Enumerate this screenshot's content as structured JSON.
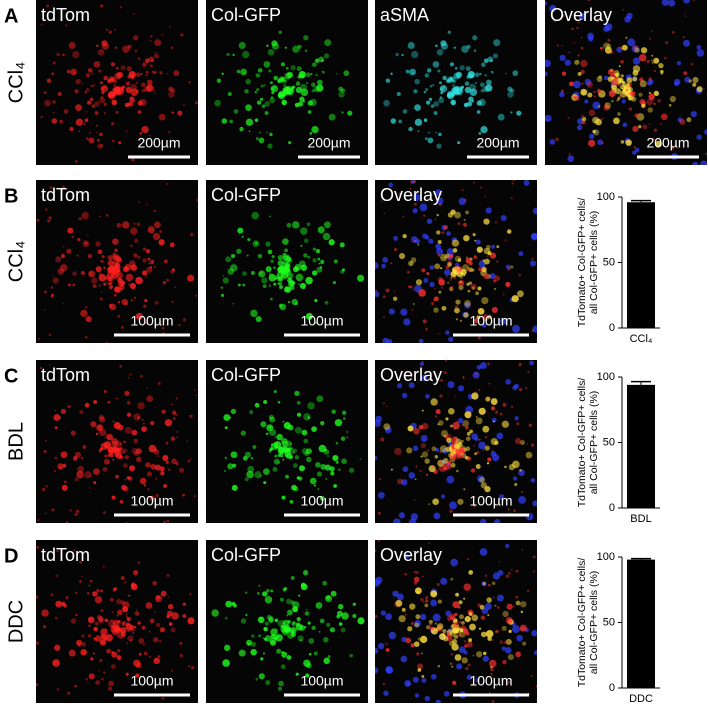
{
  "panels": [
    {
      "letter": "A",
      "condition": "CCl₄",
      "images": [
        {
          "label": "tdTom",
          "scale_bar": "200µm"
        },
        {
          "label": "Col-GFP",
          "scale_bar": "200µm"
        },
        {
          "label": "aSMA",
          "scale_bar": "200µm"
        },
        {
          "label": "Overlay",
          "scale_bar": "200µm"
        }
      ]
    },
    {
      "letter": "B",
      "condition": "CCl₄",
      "images": [
        {
          "label": "tdTom",
          "scale_bar": "100µm"
        },
        {
          "label": "Col-GFP",
          "scale_bar": "100µm"
        },
        {
          "label": "Overlay",
          "scale_bar": "100µm"
        }
      ]
    },
    {
      "letter": "C",
      "condition": "BDL",
      "images": [
        {
          "label": "tdTom",
          "scale_bar": "100µm"
        },
        {
          "label": "Col-GFP",
          "scale_bar": "100µm"
        },
        {
          "label": "Overlay",
          "scale_bar": "100µm"
        }
      ]
    },
    {
      "letter": "D",
      "condition": "DDC",
      "images": [
        {
          "label": "tdTom",
          "scale_bar": "100µm"
        },
        {
          "label": "Col-GFP",
          "scale_bar": "100µm"
        },
        {
          "label": "Overlay",
          "scale_bar": "100µm"
        }
      ]
    }
  ],
  "chart_data": [
    {
      "type": "bar",
      "ylabel": [
        "TdTomato+ Col-GFP+ cells/",
        "all Col-GFP+ cells (%)"
      ],
      "categories": [
        "CCl₄"
      ],
      "values": [
        96
      ],
      "errors": [
        1.2
      ],
      "color": "#000000",
      "ylim": [
        0,
        100
      ],
      "yticks": [
        0,
        50,
        100
      ]
    },
    {
      "type": "bar",
      "ylabel": [
        "TdTomato+ Col-GFP+ cells/",
        "all Col-GFP+ cells (%)"
      ],
      "categories": [
        "BDL"
      ],
      "values": [
        94
      ],
      "errors": [
        2.5
      ],
      "color": "#000000",
      "ylim": [
        0,
        100
      ],
      "yticks": [
        0,
        50,
        100
      ]
    },
    {
      "type": "bar",
      "ylabel": [
        "TdTomato+ Col-GFP+ cells/",
        "all Col-GFP+ cells (%)"
      ],
      "categories": [
        "DDC"
      ],
      "values": [
        98
      ],
      "errors": [
        0.8
      ],
      "color": "#000000",
      "ylim": [
        0,
        100
      ],
      "yticks": [
        0,
        50,
        100
      ]
    }
  ]
}
